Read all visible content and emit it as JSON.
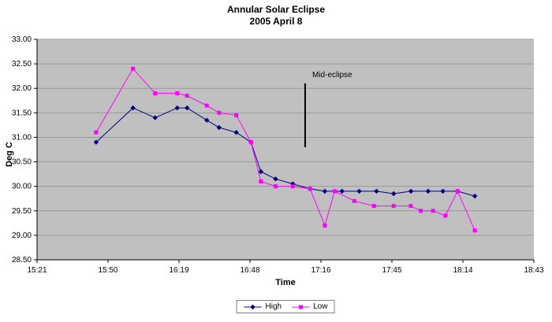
{
  "chart_data": {
    "type": "line",
    "title": "Annular Solar Eclipse",
    "subtitle": "2005 April 8",
    "xlabel": "Time",
    "ylabel": "Deg C",
    "xlim": [
      "15:21",
      "18:43"
    ],
    "ylim": [
      28.5,
      33.0
    ],
    "x_ticks": [
      "15:21",
      "15:50",
      "16:19",
      "16:48",
      "17:16",
      "17:45",
      "18:14",
      "18:43"
    ],
    "y_ticks": [
      28.5,
      29.0,
      29.5,
      30.0,
      30.5,
      31.0,
      31.5,
      32.0,
      32.5,
      33.0
    ],
    "grid": "horizontal",
    "plot_bg": "#c0c0c0",
    "grid_color": "#9a9a9a",
    "axis_color": "#000000",
    "legend_position": "bottom-center",
    "annotation": {
      "label": "Mid-eclipse",
      "time": "17:10",
      "y_from": 30.8,
      "y_to": 32.1,
      "color": "#000000"
    },
    "series": [
      {
        "name": "High",
        "color": "#000080",
        "marker": "diamond",
        "points": [
          [
            "15:45",
            30.9
          ],
          [
            "16:00",
            31.6
          ],
          [
            "16:09",
            31.4
          ],
          [
            "16:18",
            31.6
          ],
          [
            "16:22",
            31.6
          ],
          [
            "16:30",
            31.35
          ],
          [
            "16:35",
            31.2
          ],
          [
            "16:42",
            31.1
          ],
          [
            "16:48",
            30.9
          ],
          [
            "16:52",
            30.3
          ],
          [
            "16:58",
            30.15
          ],
          [
            "17:05",
            30.05
          ],
          [
            "17:12",
            29.95
          ],
          [
            "17:18",
            29.9
          ],
          [
            "17:25",
            29.9
          ],
          [
            "17:32",
            29.9
          ],
          [
            "17:39",
            29.9
          ],
          [
            "17:46",
            29.85
          ],
          [
            "17:53",
            29.9
          ],
          [
            "18:00",
            29.9
          ],
          [
            "18:06",
            29.9
          ],
          [
            "18:12",
            29.9
          ],
          [
            "18:19",
            29.8
          ]
        ]
      },
      {
        "name": "Low",
        "color": "#ff00ff",
        "marker": "square",
        "points": [
          [
            "15:45",
            31.1
          ],
          [
            "16:00",
            32.4
          ],
          [
            "16:09",
            31.9
          ],
          [
            "16:18",
            31.9
          ],
          [
            "16:22",
            31.85
          ],
          [
            "16:30",
            31.65
          ],
          [
            "16:35",
            31.5
          ],
          [
            "16:42",
            31.45
          ],
          [
            "16:48",
            30.9
          ],
          [
            "16:52",
            30.1
          ],
          [
            "16:58",
            30.0
          ],
          [
            "17:05",
            30.0
          ],
          [
            "17:12",
            29.95
          ],
          [
            "17:18",
            29.2
          ],
          [
            "17:22",
            29.9
          ],
          [
            "17:30",
            29.7
          ],
          [
            "17:38",
            29.6
          ],
          [
            "17:46",
            29.6
          ],
          [
            "17:53",
            29.6
          ],
          [
            "17:57",
            29.5
          ],
          [
            "18:02",
            29.5
          ],
          [
            "18:07",
            29.4
          ],
          [
            "18:12",
            29.9
          ],
          [
            "18:19",
            29.1
          ]
        ]
      }
    ]
  }
}
